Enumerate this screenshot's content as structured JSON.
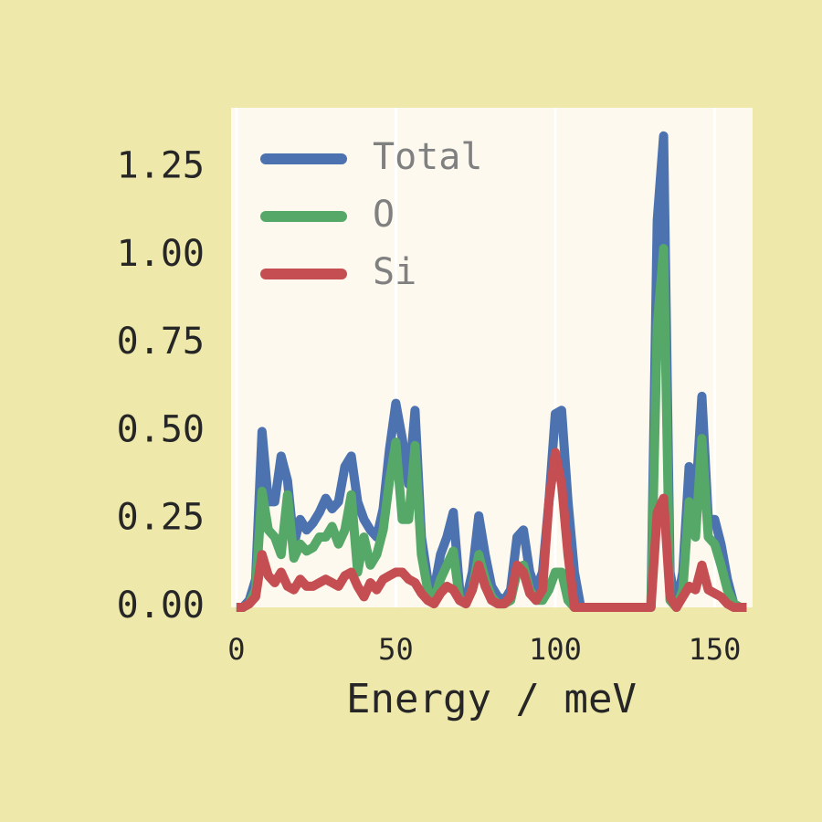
{
  "chart_data": {
    "type": "line",
    "xlabel": "Energy / meV",
    "x": [
      0,
      2,
      4,
      6,
      8,
      10,
      12,
      14,
      16,
      18,
      20,
      22,
      24,
      26,
      28,
      30,
      32,
      34,
      36,
      38,
      40,
      42,
      44,
      46,
      48,
      50,
      52,
      54,
      56,
      58,
      60,
      62,
      64,
      66,
      68,
      70,
      72,
      74,
      76,
      78,
      80,
      82,
      84,
      86,
      88,
      90,
      92,
      94,
      96,
      98,
      100,
      102,
      104,
      106,
      108,
      110,
      112,
      114,
      116,
      118,
      120,
      122,
      124,
      126,
      128,
      130,
      132,
      134,
      136,
      138,
      140,
      142,
      144,
      146,
      148,
      150,
      152,
      154,
      156,
      158,
      160
    ],
    "series": [
      {
        "name": "Total",
        "color": "#4c72b0",
        "values": [
          0,
          0,
          0.02,
          0.08,
          0.5,
          0.3,
          0.3,
          0.43,
          0.36,
          0.18,
          0.25,
          0.22,
          0.24,
          0.27,
          0.31,
          0.28,
          0.3,
          0.4,
          0.43,
          0.3,
          0.25,
          0.22,
          0.2,
          0.28,
          0.45,
          0.58,
          0.48,
          0.35,
          0.56,
          0.2,
          0.08,
          0.05,
          0.15,
          0.2,
          0.27,
          0.05,
          0.02,
          0.1,
          0.26,
          0.15,
          0.06,
          0.03,
          0.02,
          0.05,
          0.2,
          0.22,
          0.1,
          0.05,
          0.1,
          0.3,
          0.55,
          0.56,
          0.3,
          0.1,
          0,
          0,
          0,
          0,
          0,
          0,
          0,
          0,
          0,
          0,
          0,
          0,
          1.1,
          1.34,
          0.1,
          0,
          0.1,
          0.4,
          0.3,
          0.6,
          0.25,
          0.25,
          0.18,
          0.08,
          0.01,
          0,
          0
        ]
      },
      {
        "name": "O",
        "color": "#55a868",
        "values": [
          0,
          0,
          0.01,
          0.05,
          0.33,
          0.22,
          0.2,
          0.15,
          0.32,
          0.14,
          0.18,
          0.16,
          0.17,
          0.2,
          0.2,
          0.23,
          0.18,
          0.22,
          0.32,
          0.1,
          0.2,
          0.12,
          0.15,
          0.22,
          0.36,
          0.47,
          0.25,
          0.25,
          0.46,
          0.15,
          0.05,
          0.02,
          0.08,
          0.12,
          0.16,
          0.02,
          0.01,
          0.05,
          0.15,
          0.08,
          0.03,
          0.01,
          0.01,
          0.02,
          0.1,
          0.12,
          0.05,
          0.02,
          0.02,
          0.05,
          0.1,
          0.1,
          0.02,
          0,
          0,
          0,
          0,
          0,
          0,
          0,
          0,
          0,
          0,
          0,
          0,
          0,
          0.8,
          1.02,
          0.02,
          0,
          0.05,
          0.3,
          0.2,
          0.48,
          0.2,
          0.18,
          0.12,
          0.05,
          0.01,
          0,
          0
        ]
      },
      {
        "name": "Si",
        "color": "#c44e52",
        "values": [
          0,
          0,
          0.01,
          0.03,
          0.15,
          0.09,
          0.07,
          0.1,
          0.06,
          0.05,
          0.08,
          0.06,
          0.06,
          0.07,
          0.08,
          0.07,
          0.06,
          0.09,
          0.1,
          0.06,
          0.03,
          0.07,
          0.05,
          0.08,
          0.09,
          0.1,
          0.1,
          0.08,
          0.07,
          0.04,
          0.02,
          0.01,
          0.04,
          0.06,
          0.05,
          0.02,
          0.01,
          0.05,
          0.12,
          0.06,
          0.02,
          0.01,
          0.01,
          0.03,
          0.12,
          0.1,
          0.04,
          0.02,
          0.05,
          0.3,
          0.44,
          0.35,
          0.15,
          0,
          0,
          0,
          0,
          0,
          0,
          0,
          0,
          0,
          0,
          0,
          0,
          0,
          0.27,
          0.31,
          0.03,
          0,
          0.03,
          0.06,
          0.05,
          0.12,
          0.05,
          0.04,
          0.03,
          0.01,
          0,
          0,
          0
        ]
      }
    ],
    "xlim": [
      -1.7,
      161.9
    ],
    "xticks": [
      0,
      50,
      100,
      150
    ],
    "ylim": [
      0,
      1.42
    ],
    "yticks": [
      {
        "value": 0,
        "label": "0.00"
      },
      0.25,
      {
        "value": 0.5,
        "label": "0.50"
      },
      0.75,
      {
        "value": 1,
        "label": "1.00"
      },
      1.25
    ],
    "grid": "x",
    "legend": "upper left"
  }
}
